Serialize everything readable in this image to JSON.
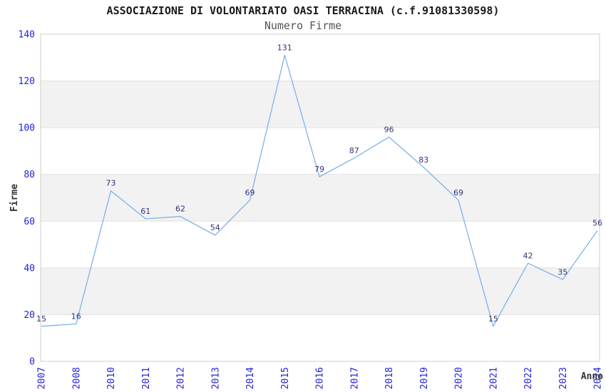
{
  "page": {
    "background_color": "#ffffff"
  },
  "chart_data": {
    "type": "line",
    "title": "ASSOCIAZIONE DI VOLONTARIATO OASI TERRACINA (c.f.91081330598)",
    "subtitle": "Numero Firme",
    "xlabel": "Anno",
    "ylabel": "Firme",
    "categories": [
      "2007",
      "2008",
      "2010",
      "2011",
      "2012",
      "2013",
      "2014",
      "2015",
      "2016",
      "2017",
      "2018",
      "2019",
      "2020",
      "2021",
      "2022",
      "2023",
      "2024"
    ],
    "values": [
      15,
      16,
      73,
      61,
      62,
      54,
      69,
      131,
      79,
      87,
      96,
      83,
      69,
      15,
      42,
      35,
      56
    ],
    "point_labels": [
      "15",
      "16",
      "73",
      "61",
      "62",
      "54",
      "69",
      "131",
      "79",
      "87",
      "96",
      "83",
      "69",
      "15",
      "42",
      "35",
      "56"
    ],
    "ylim": [
      0,
      140
    ],
    "ytick_step": 20,
    "ytick_labels": [
      "0",
      "20",
      "40",
      "60",
      "80",
      "100",
      "120",
      "140"
    ],
    "grid": "horizontal-bands-alternating",
    "legend_position": "none",
    "x_tick_rotation_deg": 90,
    "colors": {
      "line": "#7fb2e9",
      "tick_label": "#2222dd",
      "point_label": "#333380",
      "band_fill": "#f2f2f2",
      "gridline": "#e0e0e0",
      "plot_border": "#cccccc",
      "title_text": "#1a1a1a",
      "subtitle_text": "#555555",
      "axis_title_text": "#333333",
      "background": "#ffffff"
    }
  }
}
